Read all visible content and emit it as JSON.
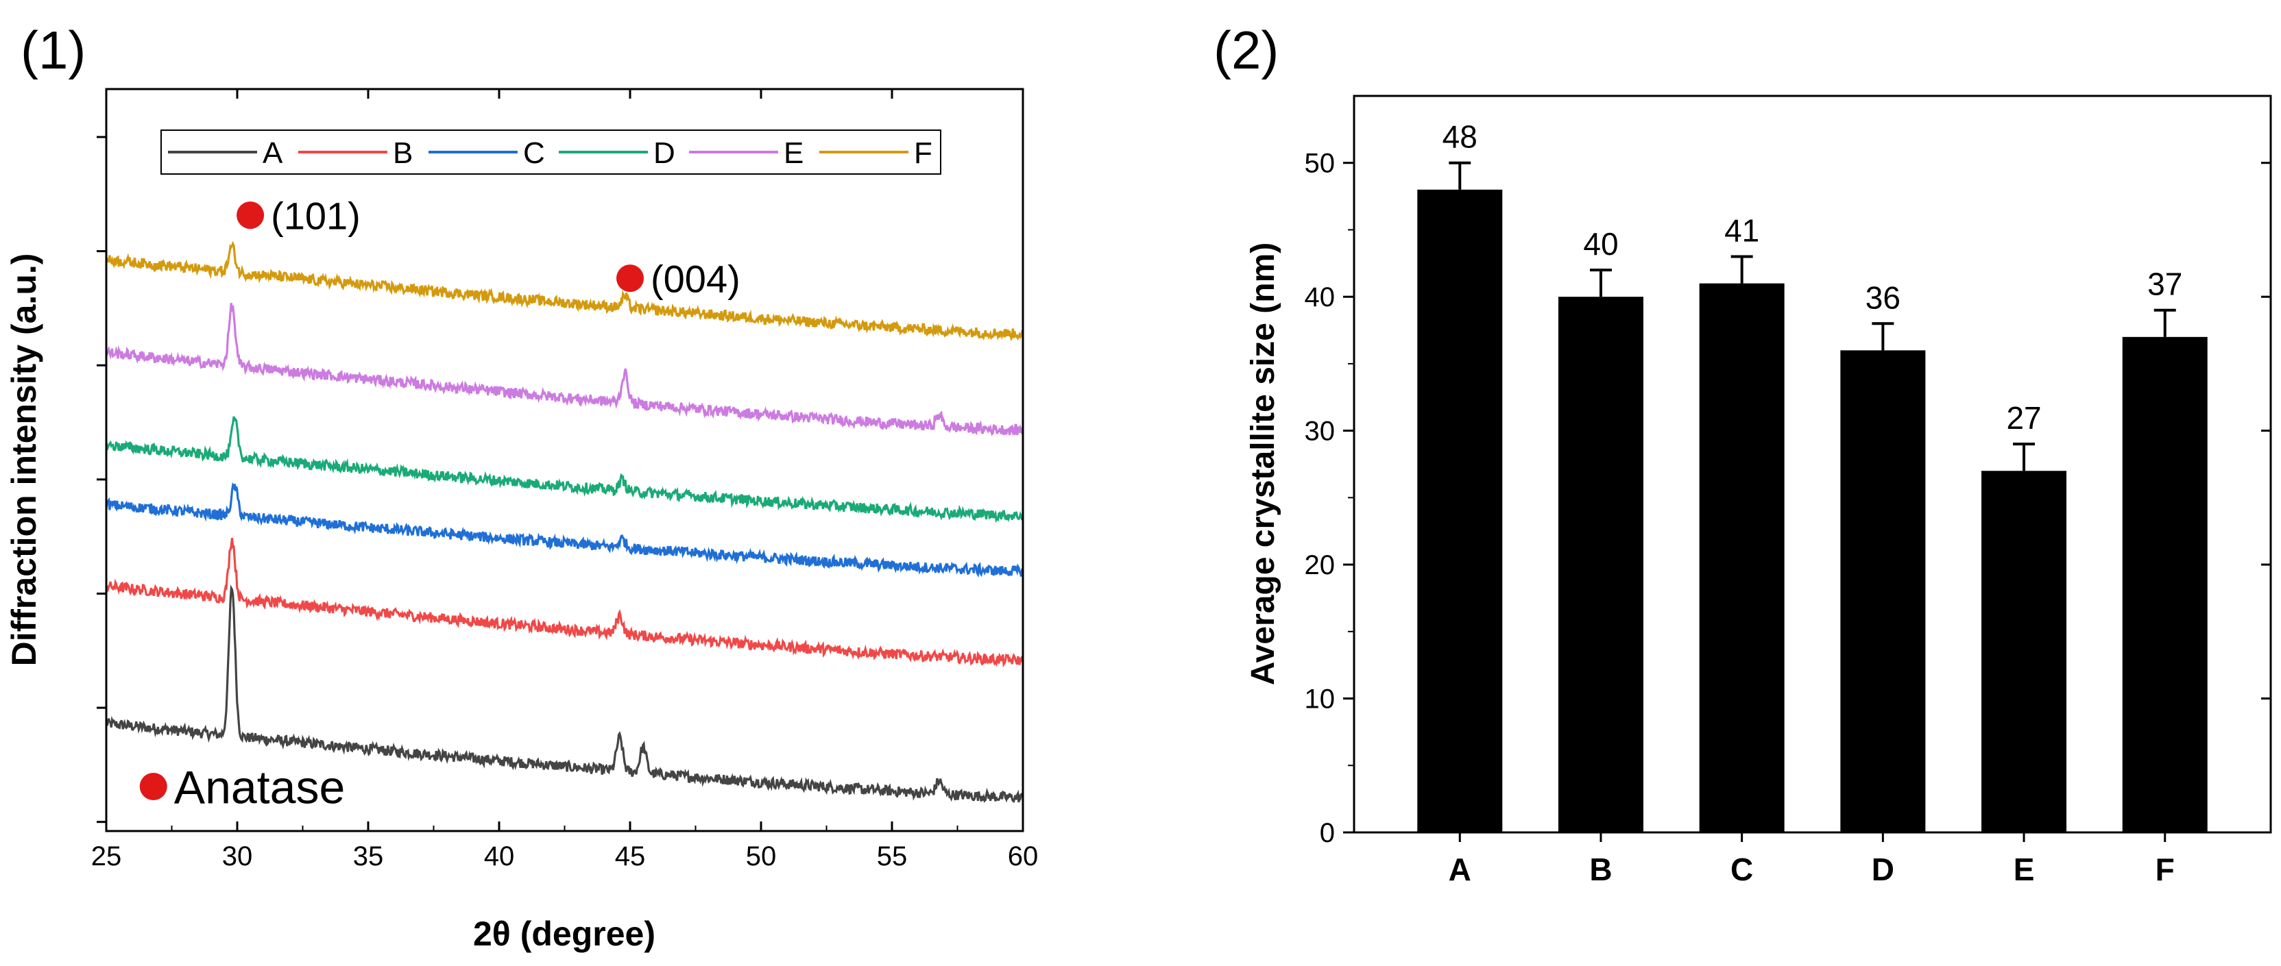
{
  "chart_data": [
    {
      "panel_label": "(1)",
      "type": "line",
      "title": "",
      "xlabel": "2θ (degree)",
      "ylabel": "Diffraction intensity (a.u.)",
      "xlim": [
        25,
        60
      ],
      "xticks": [
        25,
        30,
        35,
        40,
        45,
        50,
        55,
        60
      ],
      "ylim": [
        0,
        100
      ],
      "yticks_labeled": false,
      "legend": {
        "position": "top",
        "entries": [
          "A",
          "B",
          "C",
          "D",
          "E",
          "F"
        ]
      },
      "series": [
        {
          "name": "A",
          "color": "#444444",
          "baseline_start": 14.5,
          "baseline_end": 4.5,
          "peaks": [
            {
              "x": 29.8,
              "h": 20
            },
            {
              "x": 44.6,
              "h": 4.5
            },
            {
              "x": 45.5,
              "h": 3.5
            },
            {
              "x": 56.8,
              "h": 1.8
            }
          ]
        },
        {
          "name": "B",
          "color": "#f04848",
          "baseline_start": 33,
          "baseline_end": 23,
          "peaks": [
            {
              "x": 29.8,
              "h": 8
            },
            {
              "x": 44.6,
              "h": 2.5
            }
          ]
        },
        {
          "name": "C",
          "color": "#1f6fd6",
          "baseline_start": 44,
          "baseline_end": 35,
          "peaks": [
            {
              "x": 29.9,
              "h": 4
            },
            {
              "x": 44.7,
              "h": 1.2
            }
          ]
        },
        {
          "name": "D",
          "color": "#1aaa77",
          "baseline_start": 52,
          "baseline_end": 42.5,
          "peaks": [
            {
              "x": 29.9,
              "h": 5
            },
            {
              "x": 44.7,
              "h": 1.5
            }
          ]
        },
        {
          "name": "E",
          "color": "#cc7be0",
          "baseline_start": 64.5,
          "baseline_end": 54,
          "peaks": [
            {
              "x": 29.8,
              "h": 8
            },
            {
              "x": 44.8,
              "h": 4
            },
            {
              "x": 56.8,
              "h": 1.5
            }
          ]
        },
        {
          "name": "F",
          "color": "#d49a0e",
          "baseline_start": 77,
          "baseline_end": 67,
          "peaks": [
            {
              "x": 29.8,
              "h": 3.5
            },
            {
              "x": 44.8,
              "h": 1.5
            }
          ]
        }
      ],
      "annotations": [
        {
          "text": "(101)",
          "marker_color": "#e01818",
          "x": 30.5,
          "y": 83
        },
        {
          "text": "(004)",
          "marker_color": "#e01818",
          "x": 45.0,
          "y": 74.5
        },
        {
          "text": "Anatase",
          "marker_color": "#e01818",
          "x": 26.8,
          "y": 6
        }
      ]
    },
    {
      "panel_label": "(2)",
      "type": "bar",
      "title": "",
      "xlabel": "",
      "ylabel": "Average crystallite size (nm)",
      "ylim": [
        0,
        55
      ],
      "yticks": [
        0,
        10,
        20,
        30,
        40,
        50
      ],
      "categories": [
        "A",
        "B",
        "C",
        "D",
        "E",
        "F"
      ],
      "values": [
        48,
        40,
        41,
        36,
        27,
        37
      ],
      "errors": [
        2,
        2,
        2,
        2,
        2,
        2
      ],
      "data_labels": [
        "48",
        "40",
        "41",
        "36",
        "27",
        "37"
      ],
      "bar_color": "#000000"
    }
  ]
}
